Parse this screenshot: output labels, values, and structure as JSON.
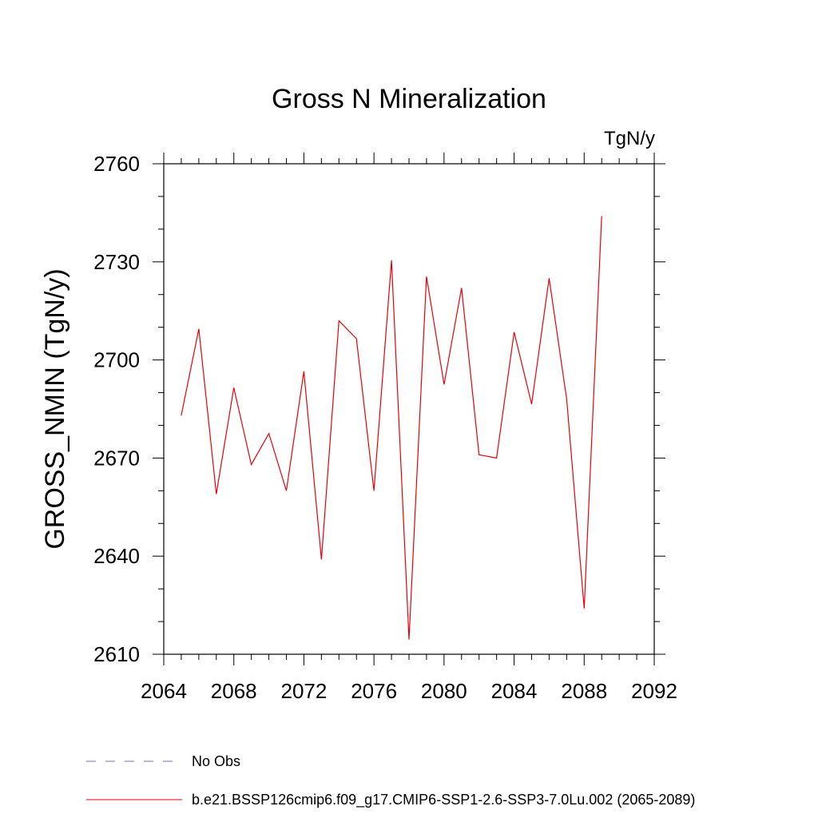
{
  "chart_data": {
    "type": "line",
    "title": "Gross N Mineralization",
    "units": "TgN/y",
    "ylabel": "GROSS_NMIN  (TgN/y)",
    "xlabel": "",
    "xlim": [
      2064,
      2092
    ],
    "ylim": [
      2610,
      2760
    ],
    "x_ticks": [
      2064,
      2068,
      2072,
      2076,
      2080,
      2084,
      2088,
      2092
    ],
    "y_ticks": [
      2610,
      2640,
      2670,
      2700,
      2730,
      2760
    ],
    "x_minor_step": 1,
    "y_minor_step": 10,
    "series": [
      {
        "name": "b.e21.BSSP126cmip6.f09_g17.CMIP6-SSP1-2.6-SSP3-7.0Lu.002 (2065-2089)",
        "color": "#e8000b",
        "x": [
          2065,
          2066,
          2067,
          2068,
          2069,
          2070,
          2071,
          2072,
          2073,
          2074,
          2075,
          2076,
          2077,
          2078,
          2079,
          2080,
          2081,
          2082,
          2083,
          2084,
          2085,
          2086,
          2087,
          2088,
          2089
        ],
        "values": [
          2683,
          2709.5,
          2659,
          2691.5,
          2668,
          2677.5,
          2660,
          2696.5,
          2639,
          2712,
          2706.5,
          2660,
          2730.5,
          2614.5,
          2725.5,
          2692.5,
          2722,
          2671,
          2670,
          2708.5,
          2686.5,
          2725,
          2688,
          2624,
          2744
        ]
      }
    ],
    "legend": [
      {
        "label": "No Obs",
        "style": "dashed",
        "color": "#7b68c8"
      },
      {
        "label": "b.e21.BSSP126cmip6.f09_g17.CMIP6-SSP1-2.6-SSP3-7.0Lu.002 (2065-2089)",
        "style": "solid",
        "color": "#e8000b"
      }
    ]
  }
}
